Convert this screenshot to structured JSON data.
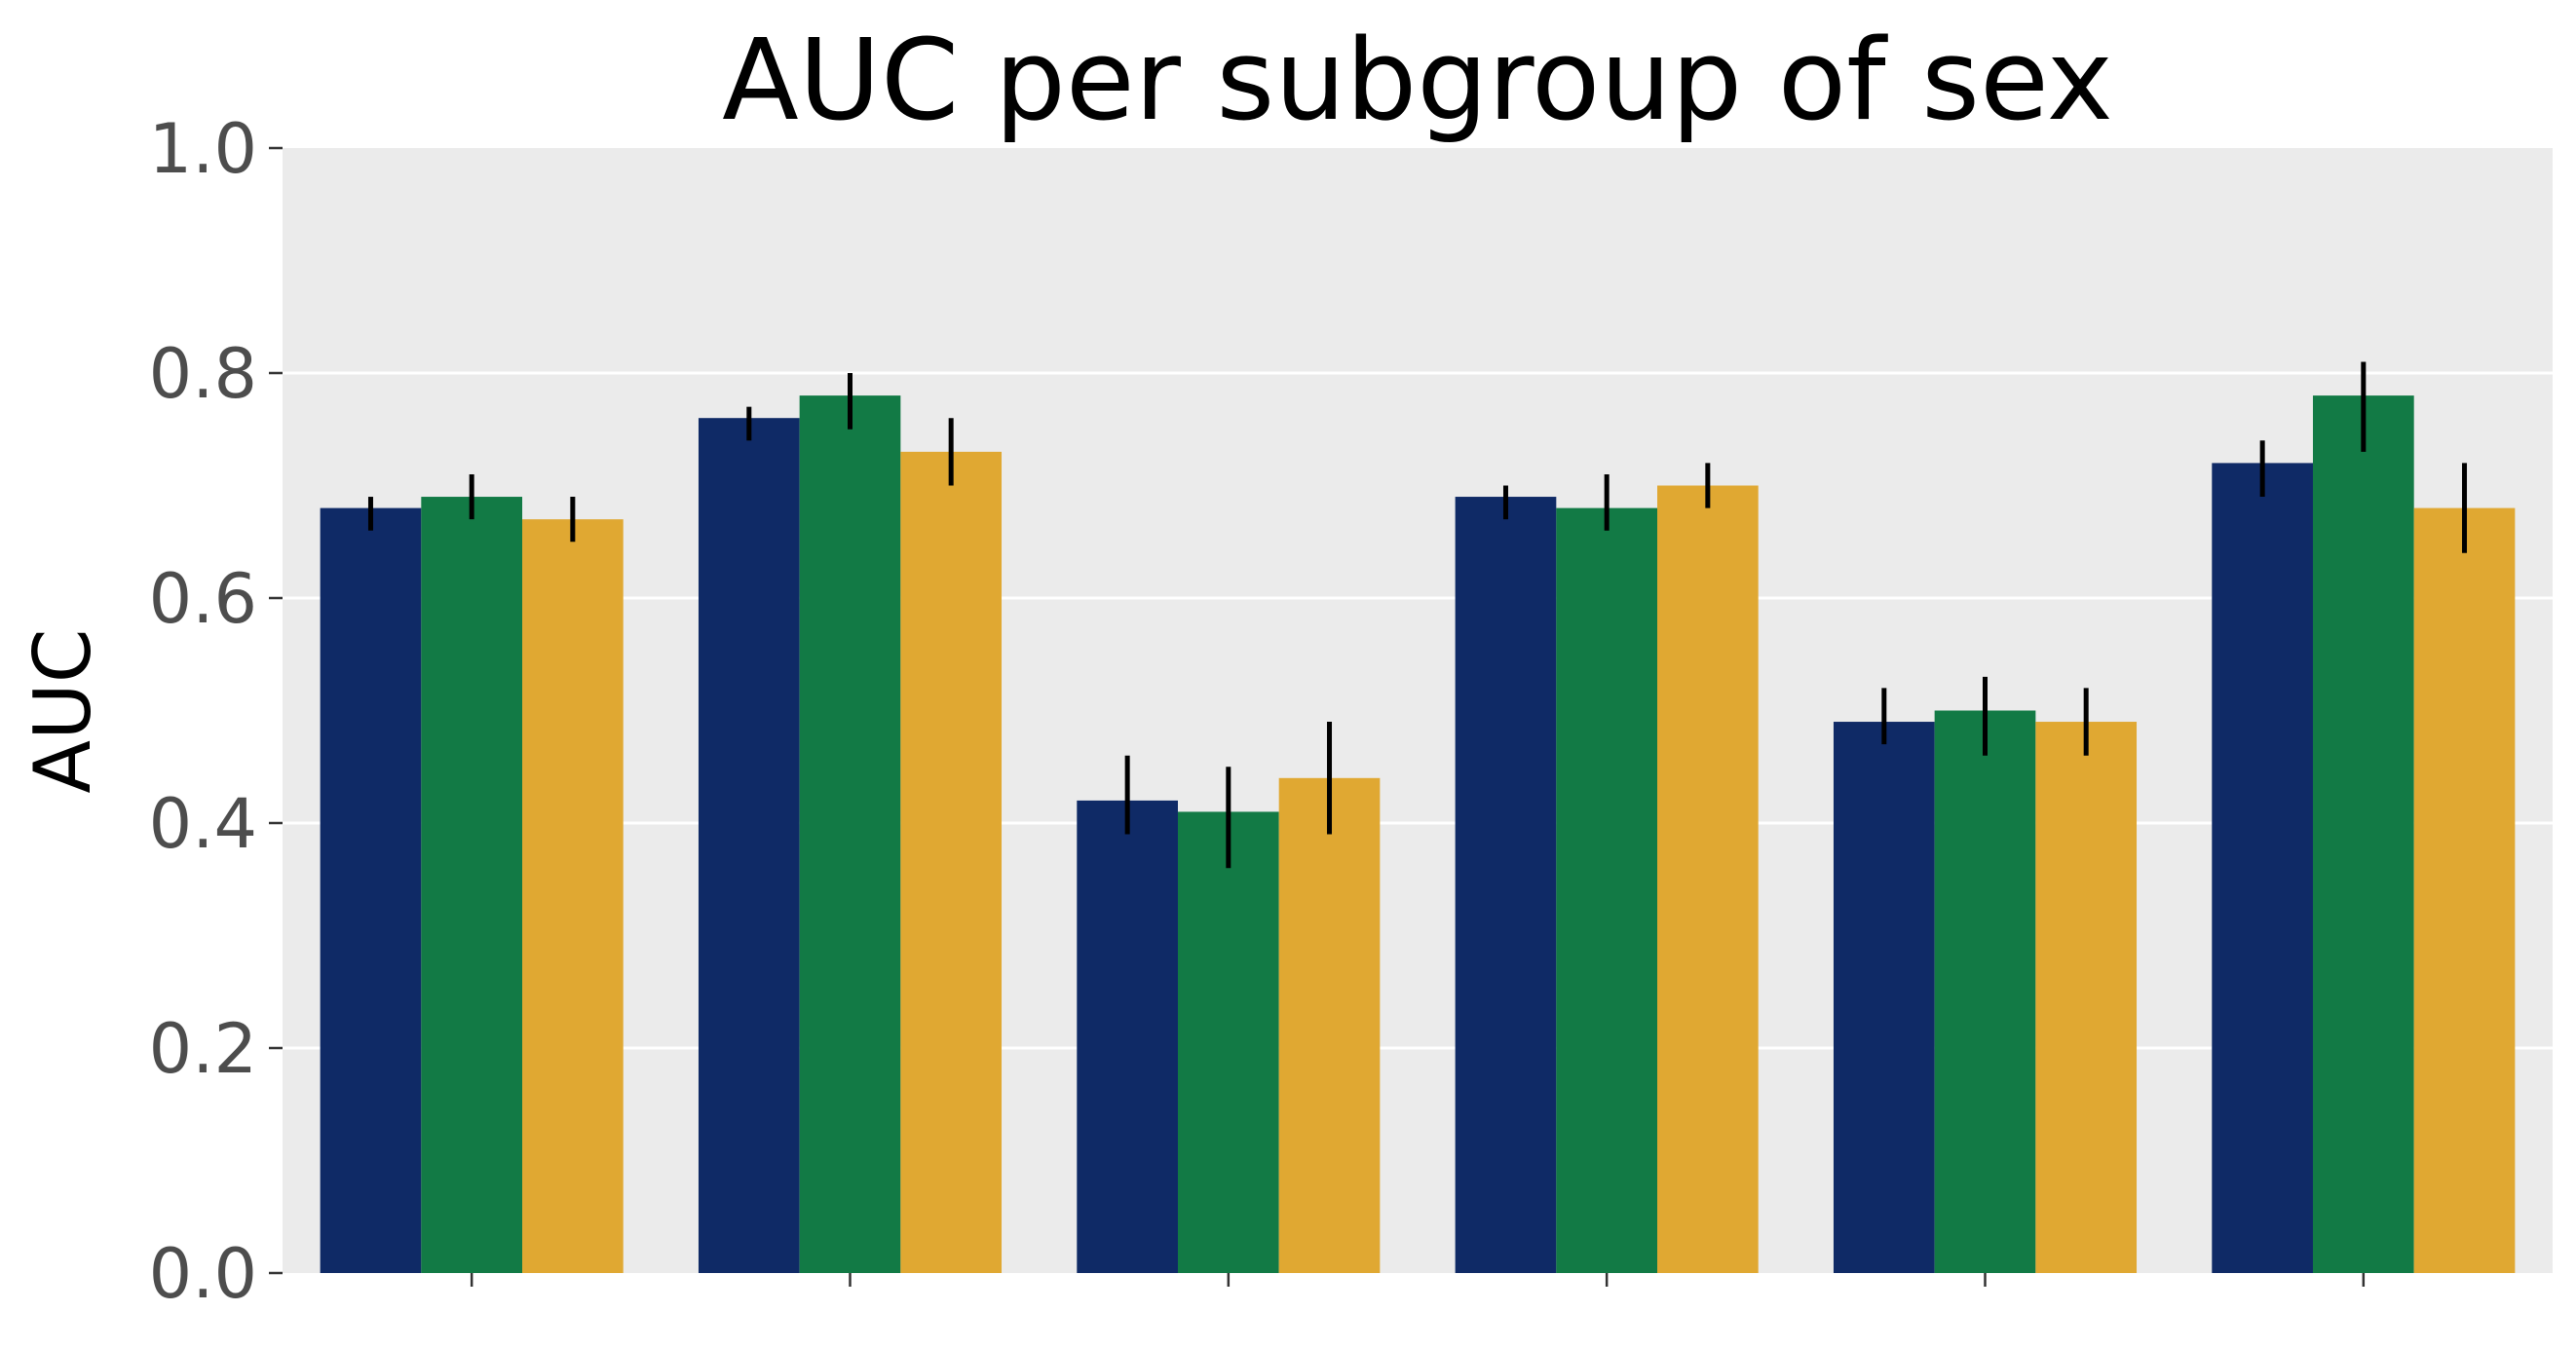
{
  "chart_data": {
    "type": "bar",
    "title": "AUC per subgroup of sex",
    "xlabel": "",
    "ylabel": "AUC",
    "ylim": [
      0,
      1.0
    ],
    "yticks": [
      "0.0",
      "0.2",
      "0.4",
      "0.6",
      "0.8",
      "1.0"
    ],
    "grid": true,
    "legend": "none",
    "categories": [
      "",
      "",
      "",
      "",
      "",
      ""
    ],
    "series": [
      {
        "color": "#0f2a66",
        "values": [
          0.68,
          0.76,
          0.42,
          0.69,
          0.49,
          0.72
        ],
        "err_low": [
          0.66,
          0.74,
          0.39,
          0.67,
          0.47,
          0.69
        ],
        "err_high": [
          0.69,
          0.77,
          0.46,
          0.7,
          0.52,
          0.74
        ]
      },
      {
        "color": "#127a45",
        "values": [
          0.69,
          0.78,
          0.41,
          0.68,
          0.5,
          0.78
        ],
        "err_low": [
          0.67,
          0.75,
          0.36,
          0.66,
          0.46,
          0.73
        ],
        "err_high": [
          0.71,
          0.8,
          0.45,
          0.71,
          0.53,
          0.81
        ]
      },
      {
        "color": "#e0a832",
        "values": [
          0.67,
          0.73,
          0.44,
          0.7,
          0.49,
          0.68
        ],
        "err_low": [
          0.65,
          0.7,
          0.39,
          0.68,
          0.46,
          0.64
        ],
        "err_high": [
          0.69,
          0.76,
          0.49,
          0.72,
          0.52,
          0.72
        ]
      }
    ],
    "colors": {
      "panel_background": "#ebebeb",
      "grid": "#ffffff",
      "error_bar": "#000000"
    }
  }
}
